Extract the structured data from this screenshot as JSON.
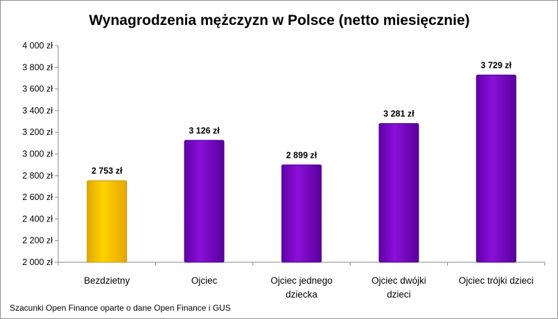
{
  "chart_data": {
    "type": "bar",
    "title": "Wynagrodzenia mężczyzn w Polsce (netto miesięcznie)",
    "categories": [
      "Bezdzietny",
      "Ojciec",
      "Ojciec jednego dziecka",
      "Ojciec dwójki dzieci",
      "Ojciec trójki dzieci"
    ],
    "category_lines": [
      [
        "Bezdzietny"
      ],
      [
        "Ojciec"
      ],
      [
        "Ojciec jednego",
        "dziecka"
      ],
      [
        "Ojciec dwójki",
        "dzieci"
      ],
      [
        "Ojciec trójki dzieci"
      ]
    ],
    "values": [
      2753,
      3126,
      2899,
      3281,
      3729
    ],
    "data_labels": [
      "2 753 zł",
      "3 126 zł",
      "2 899 zł",
      "3 281 zł",
      "3 729 zł"
    ],
    "bar_colors": [
      "#ffc800",
      "#7a00c8",
      "#7a00c8",
      "#7a00c8",
      "#7a00c8"
    ],
    "ylim": [
      2000,
      4000
    ],
    "yticks": [
      2000,
      2200,
      2400,
      2600,
      2800,
      3000,
      3200,
      3400,
      3600,
      3800,
      4000
    ],
    "ytick_labels": [
      "2 000 zł",
      "2 200 zł",
      "2 400 zł",
      "2 600 zł",
      "2 800 zł",
      "3 000 zł",
      "3 200 zł",
      "3 400 zł",
      "3 600 zł",
      "3 800 zł",
      "4 000 zł"
    ],
    "xlabel": "",
    "ylabel": "",
    "grid": false,
    "legend": "none"
  },
  "source_note": "Szacunki Open Finance oparte o dane Open Finance i GUS"
}
